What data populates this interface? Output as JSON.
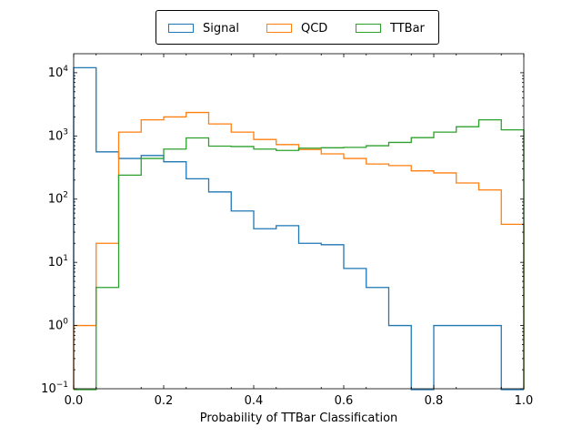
{
  "chart_data": {
    "type": "step-histogram",
    "title": "",
    "xlabel": "Probability of TTBar Classification",
    "ylabel": "",
    "xlim": [
      0.0,
      1.0
    ],
    "ylim": [
      0.1,
      20000
    ],
    "yscale": "log",
    "xticks": [
      "0.0",
      "0.2",
      "0.4",
      "0.6",
      "0.8",
      "1.0"
    ],
    "yticks": [
      {
        "exp": -1,
        "base": "10",
        "power": "−1"
      },
      {
        "exp": 0,
        "base": "10",
        "power": "0"
      },
      {
        "exp": 1,
        "base": "10",
        "power": "1"
      },
      {
        "exp": 2,
        "base": "10",
        "power": "2"
      },
      {
        "exp": 3,
        "base": "10",
        "power": "3"
      },
      {
        "exp": 4,
        "base": "10",
        "power": "4"
      }
    ],
    "bin_edges": [
      0.0,
      0.05,
      0.1,
      0.15,
      0.2,
      0.25,
      0.3,
      0.35,
      0.4,
      0.45,
      0.5,
      0.55,
      0.6,
      0.65,
      0.7,
      0.75,
      0.8,
      0.85,
      0.9,
      0.95,
      1.0
    ],
    "legend_position": "top-center",
    "series": [
      {
        "name": "Signal",
        "color": "#1f77b4",
        "values": [
          12000,
          560,
          440,
          490,
          390,
          210,
          130,
          65,
          34,
          38,
          20,
          19,
          8,
          4,
          1,
          0,
          1,
          1,
          1,
          0
        ]
      },
      {
        "name": "QCD",
        "color": "#ff7f0e",
        "values": [
          1,
          20,
          1150,
          1800,
          2000,
          2350,
          1550,
          1150,
          880,
          730,
          610,
          520,
          440,
          360,
          340,
          280,
          260,
          180,
          140,
          40
        ]
      },
      {
        "name": "TTBar",
        "color": "#2ca02c",
        "values": [
          0,
          4,
          240,
          440,
          620,
          930,
          690,
          680,
          620,
          590,
          640,
          650,
          660,
          700,
          790,
          940,
          1150,
          1400,
          1800,
          1250
        ]
      }
    ]
  }
}
